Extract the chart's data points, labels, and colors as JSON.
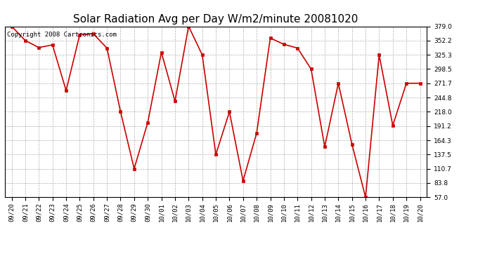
{
  "title": "Solar Radiation Avg per Day W/m2/minute 20081020",
  "copyright_text": "Copyright 2008 Cartronics.com",
  "dates": [
    "09/20",
    "09/21",
    "09/22",
    "09/23",
    "09/24",
    "09/25",
    "09/26",
    "09/27",
    "09/28",
    "09/29",
    "09/30",
    "10/01",
    "10/02",
    "10/03",
    "10/04",
    "10/05",
    "10/06",
    "10/07",
    "10/08",
    "10/09",
    "10/10",
    "10/11",
    "10/12",
    "10/13",
    "10/14",
    "10/15",
    "10/16",
    "10/17",
    "10/18",
    "10/19",
    "10/20"
  ],
  "values": [
    379.0,
    352.2,
    339.0,
    344.0,
    258.0,
    363.0,
    365.0,
    338.0,
    218.0,
    110.7,
    198.0,
    330.0,
    238.0,
    379.0,
    325.3,
    137.5,
    218.0,
    88.0,
    178.0,
    357.0,
    345.0,
    338.0,
    298.5,
    152.0,
    271.7,
    157.0,
    57.0,
    325.3,
    192.0,
    271.7,
    271.7
  ],
  "ytick_values": [
    57.0,
    83.8,
    110.7,
    137.5,
    164.3,
    191.2,
    218.0,
    244.8,
    271.7,
    298.5,
    325.3,
    352.2,
    379.0
  ],
  "line_color": "#cc0000",
  "marker_color": "#cc0000",
  "bg_color": "#ffffff",
  "grid_color": "#b0b0b0",
  "title_fontsize": 11,
  "copyright_fontsize": 6.5,
  "tick_fontsize": 6.5,
  "ylim": [
    57.0,
    379.0
  ]
}
